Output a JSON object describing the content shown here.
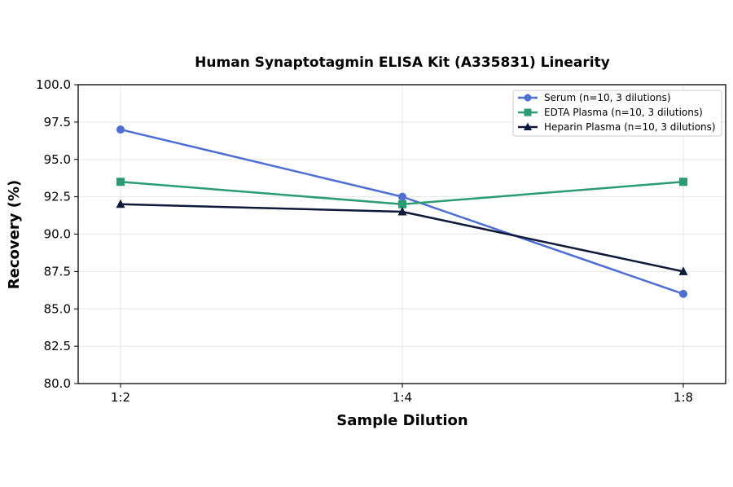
{
  "chart_data": {
    "type": "line",
    "title": "Human Synaptotagmin ELISA Kit (A335831) Linearity",
    "xlabel": "Sample Dilution",
    "ylabel": "Recovery (%)",
    "categories": [
      "1:2",
      "1:4",
      "1:8"
    ],
    "ylim": [
      80.0,
      100.0
    ],
    "yticks": [
      "80.0",
      "82.5",
      "85.0",
      "87.5",
      "90.0",
      "92.5",
      "95.0",
      "97.5",
      "100.0"
    ],
    "grid": true,
    "legend_position": "top-right",
    "series": [
      {
        "name": "Serum (n=10, 3 dilutions)",
        "values": [
          97.0,
          92.5,
          86.0
        ],
        "color": "#4e6fd1",
        "marker": "circle"
      },
      {
        "name": "EDTA Plasma (n=10, 3 dilutions)",
        "values": [
          93.5,
          92.0,
          93.5
        ],
        "color": "#2a9b72",
        "marker": "square"
      },
      {
        "name": "Heparin Plasma (n=10, 3 dilutions)",
        "values": [
          92.0,
          91.5,
          87.5
        ],
        "color": "#0f1a3a",
        "marker": "triangle"
      }
    ]
  }
}
